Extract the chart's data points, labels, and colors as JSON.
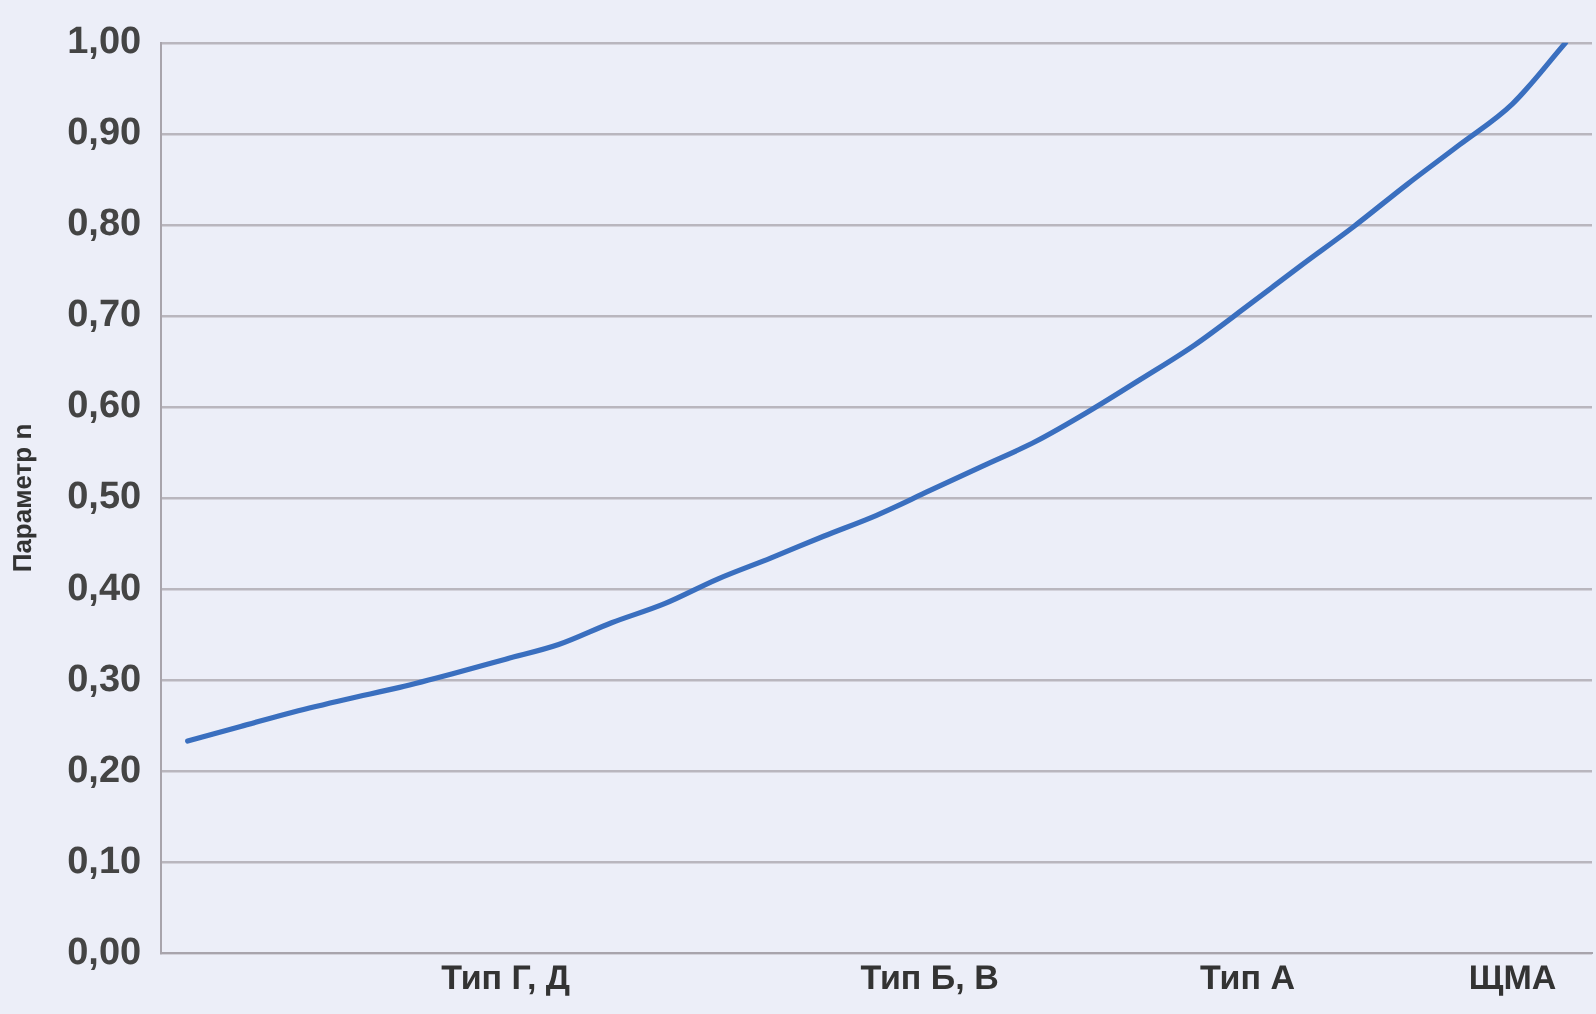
{
  "chart_data": {
    "type": "line",
    "ylabel": "Параметр n",
    "ylim": [
      0,
      1
    ],
    "categories": [
      null,
      null,
      null,
      null,
      null,
      null,
      "Тип Г, Д",
      null,
      null,
      null,
      null,
      null,
      null,
      null,
      "Тип Б, В",
      null,
      null,
      null,
      null,
      null,
      "Тип А",
      null,
      null,
      null,
      null,
      "ЩМА",
      null
    ],
    "yticks": [
      {
        "value": 0,
        "label": "0,00"
      },
      {
        "value": 0.1,
        "label": "0,10"
      },
      {
        "value": 0.2,
        "label": "0,20"
      },
      {
        "value": 0.3,
        "label": "0,30"
      },
      {
        "value": 0.4,
        "label": "0,40"
      },
      {
        "value": 0.5,
        "label": "0,50"
      },
      {
        "value": 0.6,
        "label": "0,60"
      },
      {
        "value": 0.7,
        "label": "0,70"
      },
      {
        "value": 0.8,
        "label": "0,80"
      },
      {
        "value": 0.9,
        "label": "0,90"
      },
      {
        "value": 1,
        "label": "1,00"
      }
    ],
    "grid": "y",
    "marker": "none",
    "line_style": "solid",
    "series": [
      {
        "color": "#3a6fbf",
        "values": [
          0.233,
          0.249,
          0.265,
          0.279,
          0.292,
          0.307,
          0.323,
          0.339,
          0.363,
          0.384,
          0.411,
          0.434,
          0.458,
          0.481,
          0.508,
          0.535,
          0.562,
          0.595,
          0.631,
          0.668,
          0.711,
          0.755,
          0.798,
          0.844,
          0.888,
          0.933,
          1.0
        ]
      }
    ]
  }
}
